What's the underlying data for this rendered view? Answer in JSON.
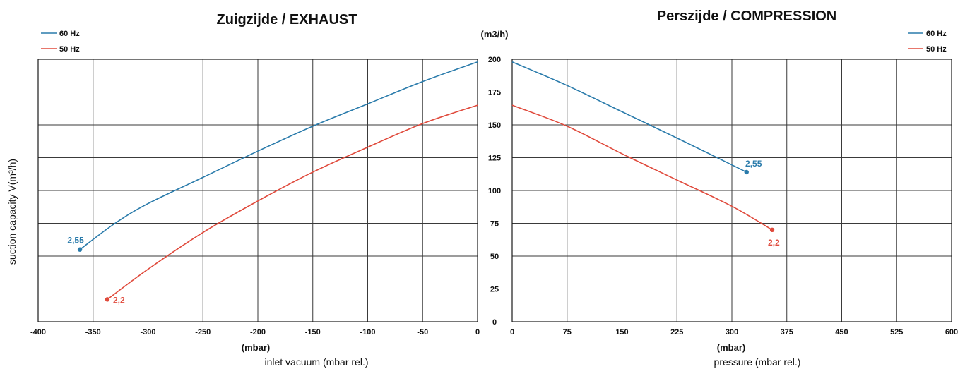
{
  "colors": {
    "hz60": "#2a7bab",
    "hz50": "#e04a3c"
  },
  "center_unit": "(m3/h)",
  "ylabel": "suction capacity V(m³/h)",
  "yticks": [
    "0",
    "25",
    "50",
    "75",
    "100",
    "125",
    "150",
    "175",
    "200"
  ],
  "chart_data": [
    {
      "type": "line",
      "title": "Zuigzijde / EXHAUST",
      "xlabel_unit": "(mbar)",
      "xlabel": "inlet vacuum (mbar rel.)",
      "xlim": [
        -400,
        0
      ],
      "ylim": [
        0,
        200
      ],
      "xticks": [
        "-400",
        "-350",
        "-300",
        "-250",
        "-200",
        "-150",
        "-100",
        "-50",
        "0"
      ],
      "legend": [
        "60 Hz",
        "50 Hz"
      ],
      "series": [
        {
          "name": "60 Hz",
          "color": "#2a7bab",
          "x": [
            -362,
            -330,
            -300,
            -250,
            -200,
            -150,
            -100,
            -50,
            0
          ],
          "y": [
            55,
            75,
            90,
            110,
            130,
            149,
            166,
            183,
            198
          ],
          "end_label": "2,55"
        },
        {
          "name": "50 Hz",
          "color": "#e04a3c",
          "x": [
            -337,
            -300,
            -250,
            -200,
            -150,
            -100,
            -50,
            0
          ],
          "y": [
            17,
            40,
            68,
            92,
            114,
            133,
            151,
            165
          ],
          "end_label": "2,2"
        }
      ]
    },
    {
      "type": "line",
      "title": "Perszijde / COMPRESSION",
      "xlabel_unit": "(mbar)",
      "xlabel": "pressure (mbar rel.)",
      "xlim": [
        0,
        600
      ],
      "ylim": [
        0,
        200
      ],
      "xticks": [
        "0",
        "75",
        "150",
        "225",
        "300",
        "375",
        "450",
        "525",
        "600"
      ],
      "legend": [
        "60 Hz",
        "50 Hz"
      ],
      "series": [
        {
          "name": "60 Hz",
          "color": "#2a7bab",
          "x": [
            0,
            75,
            150,
            225,
            320
          ],
          "y": [
            198,
            180,
            160,
            140,
            114
          ],
          "end_label": "2,55"
        },
        {
          "name": "50 Hz",
          "color": "#e04a3c",
          "x": [
            0,
            75,
            150,
            225,
            300,
            355
          ],
          "y": [
            165,
            149,
            128,
            108,
            88,
            70
          ],
          "end_label": "2,2"
        }
      ]
    }
  ]
}
